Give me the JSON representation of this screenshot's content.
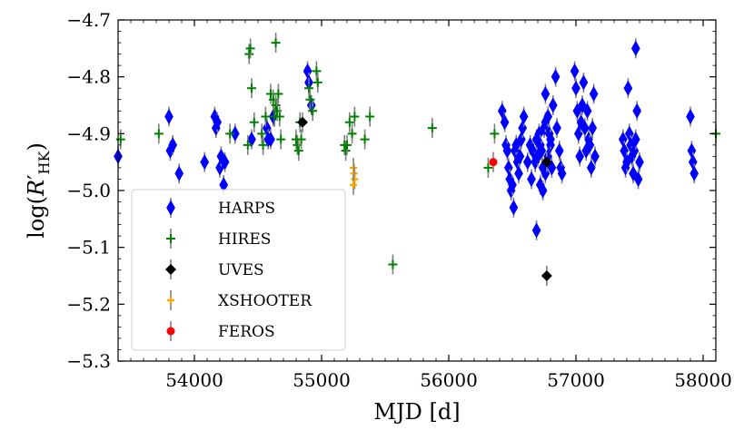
{
  "chart_data": {
    "type": "scatter",
    "xlabel": "MJD [d]",
    "ylabel": "log(R′HK)",
    "ylabel_parts": {
      "base": "log(",
      "r": "R",
      "prime": "′",
      "sub": "HK",
      "close": ")"
    },
    "xlim": [
      53400,
      58100
    ],
    "ylim": [
      -5.3,
      -4.7
    ],
    "xticks": [
      54000,
      55000,
      56000,
      57000,
      58000
    ],
    "xtick_labels": [
      "54000",
      "55000",
      "56000",
      "57000",
      "58000"
    ],
    "yticks": [
      -4.7,
      -4.8,
      -4.9,
      -5.0,
      -5.1,
      -5.2,
      -5.3
    ],
    "ytick_labels": [
      "−4.7",
      "−4.8",
      "−4.9",
      "−5.0",
      "−5.1",
      "−5.2",
      "−5.3"
    ],
    "grid": false,
    "legend_position": "lower-left",
    "series": [
      {
        "name": "HARPS",
        "marker": "diamond",
        "color": "#0000ff",
        "points": [
          [
            53400,
            -4.94
          ],
          [
            53800,
            -4.87
          ],
          [
            53810,
            -4.93
          ],
          [
            53830,
            -4.92
          ],
          [
            53880,
            -4.97
          ],
          [
            54080,
            -4.95
          ],
          [
            54160,
            -4.87
          ],
          [
            54170,
            -4.89
          ],
          [
            54180,
            -4.88
          ],
          [
            54200,
            -4.96
          ],
          [
            54210,
            -4.94
          ],
          [
            54230,
            -4.99
          ],
          [
            54240,
            -4.95
          ],
          [
            54320,
            -4.9
          ],
          [
            54450,
            -4.91
          ],
          [
            54570,
            -4.89
          ],
          [
            54580,
            -4.91
          ],
          [
            54600,
            -4.91
          ],
          [
            54620,
            -4.87
          ],
          [
            54890,
            -4.79
          ],
          [
            54900,
            -4.81
          ],
          [
            54920,
            -4.85
          ],
          [
            56420,
            -4.86
          ],
          [
            56440,
            -4.88
          ],
          [
            56450,
            -4.92
          ],
          [
            56460,
            -4.93
          ],
          [
            56470,
            -4.96
          ],
          [
            56480,
            -4.98
          ],
          [
            56490,
            -5.0
          ],
          [
            56500,
            -4.99
          ],
          [
            56510,
            -5.03
          ],
          [
            56520,
            -4.93
          ],
          [
            56530,
            -4.92
          ],
          [
            56540,
            -4.95
          ],
          [
            56550,
            -4.97
          ],
          [
            56560,
            -4.94
          ],
          [
            56570,
            -4.91
          ],
          [
            56580,
            -4.89
          ],
          [
            56590,
            -4.87
          ],
          [
            56620,
            -4.95
          ],
          [
            56640,
            -4.92
          ],
          [
            56650,
            -4.98
          ],
          [
            56660,
            -4.93
          ],
          [
            56680,
            -4.95
          ],
          [
            56690,
            -4.91
          ],
          [
            56700,
            -4.94
          ],
          [
            56710,
            -4.9
          ],
          [
            56720,
            -4.92
          ],
          [
            56730,
            -4.93
          ],
          [
            56740,
            -4.96
          ],
          [
            56750,
            -4.89
          ],
          [
            56760,
            -4.97
          ],
          [
            56770,
            -4.95
          ],
          [
            56780,
            -4.94
          ],
          [
            56790,
            -4.9
          ],
          [
            56800,
            -4.92
          ],
          [
            56810,
            -4.96
          ],
          [
            56690,
            -5.07
          ],
          [
            56720,
            -4.99
          ],
          [
            56740,
            -5.0
          ],
          [
            56760,
            -4.88
          ],
          [
            56780,
            -4.87
          ],
          [
            56800,
            -4.91
          ],
          [
            56820,
            -4.85
          ],
          [
            56840,
            -4.8
          ],
          [
            56760,
            -4.83
          ],
          [
            56850,
            -4.89
          ],
          [
            56870,
            -4.93
          ],
          [
            56880,
            -4.96
          ],
          [
            56890,
            -4.97
          ],
          [
            56990,
            -4.79
          ],
          [
            57000,
            -4.82
          ],
          [
            57010,
            -4.86
          ],
          [
            57020,
            -4.9
          ],
          [
            57030,
            -4.94
          ],
          [
            57040,
            -4.88
          ],
          [
            57050,
            -4.85
          ],
          [
            57060,
            -4.81
          ],
          [
            57070,
            -4.89
          ],
          [
            57080,
            -4.93
          ],
          [
            57090,
            -4.86
          ],
          [
            57100,
            -4.91
          ],
          [
            57110,
            -4.92
          ],
          [
            57120,
            -4.96
          ],
          [
            57130,
            -4.89
          ],
          [
            57140,
            -4.83
          ],
          [
            57150,
            -4.94
          ],
          [
            57370,
            -4.91
          ],
          [
            57380,
            -4.93
          ],
          [
            57390,
            -4.96
          ],
          [
            57400,
            -4.95
          ],
          [
            57410,
            -4.82
          ],
          [
            57420,
            -4.9
          ],
          [
            57430,
            -4.92
          ],
          [
            57440,
            -4.94
          ],
          [
            57450,
            -4.97
          ],
          [
            57460,
            -4.93
          ],
          [
            57470,
            -4.91
          ],
          [
            57480,
            -4.86
          ],
          [
            57490,
            -4.98
          ],
          [
            57500,
            -4.95
          ],
          [
            57470,
            -4.75
          ],
          [
            57900,
            -4.87
          ],
          [
            57910,
            -4.93
          ],
          [
            57920,
            -4.95
          ],
          [
            57930,
            -4.97
          ]
        ]
      },
      {
        "name": "HIRES",
        "marker": "plus",
        "color": "#008000",
        "points": [
          [
            53420,
            -4.91
          ],
          [
            53720,
            -4.9
          ],
          [
            54280,
            -4.9
          ],
          [
            54420,
            -4.92
          ],
          [
            54430,
            -4.76
          ],
          [
            54440,
            -4.75
          ],
          [
            54450,
            -4.82
          ],
          [
            54470,
            -4.88
          ],
          [
            54530,
            -4.9
          ],
          [
            54540,
            -4.92
          ],
          [
            54560,
            -4.87
          ],
          [
            54600,
            -4.83
          ],
          [
            54620,
            -4.84
          ],
          [
            54630,
            -4.87
          ],
          [
            54640,
            -4.85
          ],
          [
            54650,
            -4.86
          ],
          [
            54660,
            -4.83
          ],
          [
            54670,
            -4.87
          ],
          [
            54680,
            -4.91
          ],
          [
            54800,
            -4.91
          ],
          [
            54810,
            -4.92
          ],
          [
            54820,
            -4.93
          ],
          [
            54830,
            -4.88
          ],
          [
            54640,
            -4.74
          ],
          [
            54840,
            -4.91
          ],
          [
            54900,
            -4.82
          ],
          [
            54910,
            -4.84
          ],
          [
            54930,
            -4.86
          ],
          [
            54960,
            -4.79
          ],
          [
            54970,
            -4.81
          ],
          [
            55180,
            -4.92
          ],
          [
            55190,
            -4.93
          ],
          [
            55200,
            -4.92
          ],
          [
            55220,
            -4.88
          ],
          [
            55240,
            -4.9
          ],
          [
            55260,
            -4.87
          ],
          [
            55340,
            -4.91
          ],
          [
            55380,
            -4.87
          ],
          [
            55560,
            -5.13
          ],
          [
            55870,
            -4.89
          ],
          [
            56310,
            -4.96
          ],
          [
            56360,
            -4.9
          ],
          [
            58100,
            -4.9
          ]
        ]
      },
      {
        "name": "UVES",
        "marker": "filled-diamond",
        "color": "#000000",
        "points": [
          [
            54850,
            -4.88
          ],
          [
            56770,
            -4.95
          ],
          [
            56770,
            -5.15
          ]
        ]
      },
      {
        "name": "XSHOOTER",
        "marker": "tri",
        "color": "#ffa500",
        "points": [
          [
            55250,
            -4.96
          ],
          [
            55255,
            -4.97
          ],
          [
            55260,
            -4.98
          ],
          [
            55250,
            -4.99
          ]
        ]
      },
      {
        "name": "FEROS",
        "marker": "circle",
        "color": "#ff0000",
        "points": [
          [
            56350,
            -4.95
          ]
        ]
      }
    ]
  }
}
